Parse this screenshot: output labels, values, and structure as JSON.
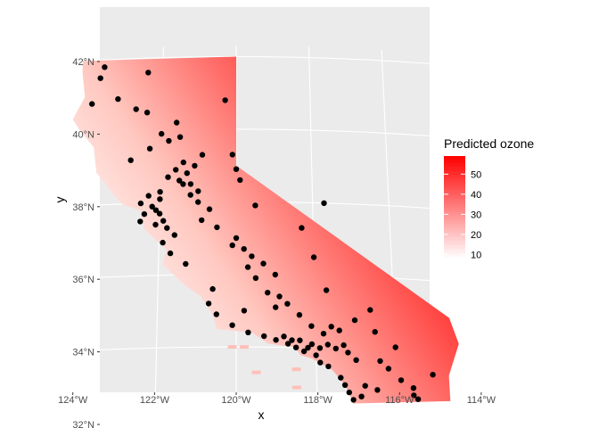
{
  "chart_data": {
    "type": "map",
    "xlabel": "x",
    "ylabel": "y",
    "x_ticks": [
      "124°W",
      "122°W",
      "120°W",
      "118°W",
      "116°W",
      "114°W"
    ],
    "y_ticks": [
      "32°N",
      "34°N",
      "36°N",
      "38°N",
      "40°N",
      "42°N"
    ],
    "lon_range": [
      -124.2,
      -114.2
    ],
    "lat_range": [
      32.0,
      42.3
    ],
    "legend": {
      "title": "Predicted ozone",
      "labels": [
        "10",
        "20",
        "30",
        "40",
        "50"
      ],
      "range": [
        8,
        59
      ],
      "color_low": "#ffffff",
      "color_high": "#ff0000"
    },
    "panel_background": "#ebebeb",
    "gridline_color": "#ffffff",
    "point_color": "#000000",
    "monitoring_sites": [
      [
        -123.6,
        41.8
      ],
      [
        -123.7,
        41.5
      ],
      [
        -122.4,
        41.6
      ],
      [
        -120.3,
        40.8
      ],
      [
        -123.2,
        40.9
      ],
      [
        -122.7,
        40.6
      ],
      [
        -122.4,
        40.5
      ],
      [
        -121.6,
        40.2
      ],
      [
        -123.9,
        40.8
      ],
      [
        -122.0,
        39.9
      ],
      [
        -121.5,
        39.8
      ],
      [
        -121.8,
        39.7
      ],
      [
        -122.3,
        39.5
      ],
      [
        -122.8,
        39.2
      ],
      [
        -120.9,
        39.3
      ],
      [
        -121.1,
        39.0
      ],
      [
        -121.3,
        38.8
      ],
      [
        -121.5,
        38.6
      ],
      [
        -121.4,
        38.5
      ],
      [
        -121.2,
        38.5
      ],
      [
        -121.8,
        38.7
      ],
      [
        -122.0,
        38.3
      ],
      [
        -122.3,
        38.2
      ],
      [
        -122.5,
        38.0
      ],
      [
        -122.2,
        37.9
      ],
      [
        -122.1,
        37.8
      ],
      [
        -122.0,
        37.7
      ],
      [
        -121.9,
        37.5
      ],
      [
        -121.8,
        37.3
      ],
      [
        -122.4,
        37.7
      ],
      [
        -122.5,
        37.5
      ],
      [
        -122.1,
        37.4
      ],
      [
        -121.6,
        37.1
      ],
      [
        -121.9,
        36.9
      ],
      [
        -121.7,
        36.6
      ],
      [
        -121.3,
        36.3
      ],
      [
        -121.2,
        38.2
      ],
      [
        -121.0,
        38.0
      ],
      [
        -120.7,
        37.8
      ],
      [
        -120.9,
        37.5
      ],
      [
        -120.5,
        37.3
      ],
      [
        -120.1,
        36.8
      ],
      [
        -119.8,
        36.7
      ],
      [
        -119.6,
        36.5
      ],
      [
        -119.3,
        36.3
      ],
      [
        -119.0,
        36.0
      ],
      [
        -119.5,
        35.9
      ],
      [
        -119.2,
        35.5
      ],
      [
        -118.9,
        35.4
      ],
      [
        -118.7,
        35.2
      ],
      [
        -120.6,
        35.6
      ],
      [
        -120.7,
        35.2
      ],
      [
        -120.5,
        34.9
      ],
      [
        -120.1,
        34.6
      ],
      [
        -119.7,
        34.4
      ],
      [
        -119.3,
        34.3
      ],
      [
        -119.0,
        34.2
      ],
      [
        -118.7,
        34.1
      ],
      [
        -118.5,
        34.0
      ],
      [
        -118.3,
        33.9
      ],
      [
        -118.2,
        34.0
      ],
      [
        -118.1,
        34.1
      ],
      [
        -117.9,
        34.0
      ],
      [
        -117.7,
        34.1
      ],
      [
        -117.5,
        34.0
      ],
      [
        -117.3,
        34.1
      ],
      [
        -117.2,
        33.9
      ],
      [
        -117.0,
        33.7
      ],
      [
        -118.0,
        33.8
      ],
      [
        -117.9,
        33.6
      ],
      [
        -117.7,
        33.5
      ],
      [
        -117.4,
        33.2
      ],
      [
        -117.3,
        33.0
      ],
      [
        -117.2,
        32.8
      ],
      [
        -117.1,
        32.6
      ],
      [
        -116.9,
        32.7
      ],
      [
        -116.5,
        32.9
      ],
      [
        -116.2,
        33.5
      ],
      [
        -115.6,
        33.0
      ],
      [
        -115.5,
        32.7
      ],
      [
        -115.6,
        32.8
      ],
      [
        -116.0,
        34.1
      ],
      [
        -116.5,
        34.5
      ],
      [
        -117.0,
        34.8
      ],
      [
        -117.6,
        34.6
      ],
      [
        -118.1,
        34.6
      ],
      [
        -118.4,
        34.9
      ],
      [
        -117.7,
        35.6
      ],
      [
        -116.6,
        35.1
      ],
      [
        -118.0,
        36.5
      ],
      [
        -118.3,
        37.3
      ],
      [
        -117.7,
        38.0
      ],
      [
        -119.5,
        37.9
      ],
      [
        -119.9,
        38.6
      ],
      [
        -120.0,
        38.9
      ],
      [
        -120.1,
        39.3
      ],
      [
        -121.0,
        38.3
      ],
      [
        -121.4,
        39.1
      ],
      [
        -121.6,
        38.9
      ],
      [
        -122.0,
        38.1
      ],
      [
        -120.0,
        37.0
      ],
      [
        -119.7,
        36.2
      ],
      [
        -118.8,
        34.3
      ],
      [
        -118.6,
        34.2
      ],
      [
        -118.4,
        34.2
      ],
      [
        -117.8,
        34.4
      ],
      [
        -117.4,
        34.5
      ],
      [
        -116.8,
        33.0
      ],
      [
        -116.4,
        33.7
      ],
      [
        -115.9,
        33.2
      ],
      [
        -115.1,
        33.4
      ],
      [
        -119.8,
        35.0
      ],
      [
        -119.0,
        35.1
      ]
    ]
  }
}
